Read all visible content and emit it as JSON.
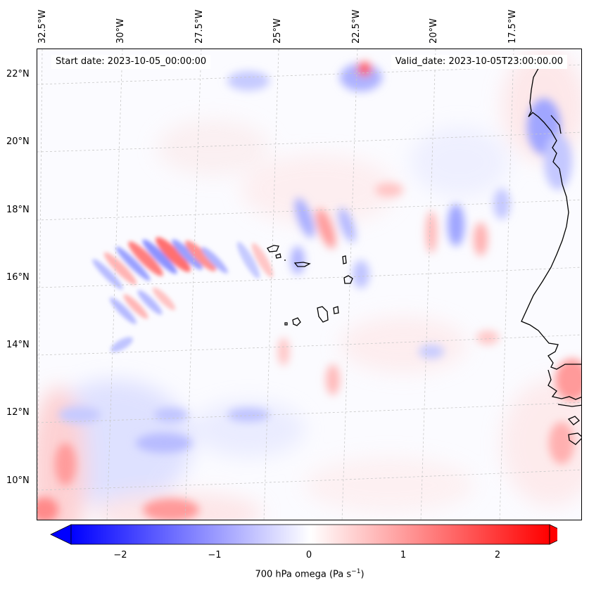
{
  "map": {
    "start_date": "Start date: 2023-10-05_00:00:00",
    "valid_date": "Valid_date: 2023-10-05T23:00:00.00",
    "lon_labels": [
      "32.5°W",
      "30°W",
      "27.5°W",
      "25°W",
      "22.5°W",
      "20°W",
      "17.5°W"
    ],
    "lat_labels": [
      "22°N",
      "20°N",
      "18°N",
      "16°N",
      "14°N",
      "12°N",
      "10°N"
    ],
    "colors": {
      "negative": "#0000ff",
      "neutral": "#ffffff",
      "positive": "#ff0000",
      "coast": "#000000",
      "grid": "#c8c8c8"
    }
  },
  "colorbar": {
    "ticks": [
      "−2",
      "−1",
      "0",
      "1",
      "2"
    ],
    "label": "700 hPa omega (Pa s",
    "label_sup": "−1",
    "label_end": ")",
    "range": [
      -2.6,
      2.6
    ]
  }
}
